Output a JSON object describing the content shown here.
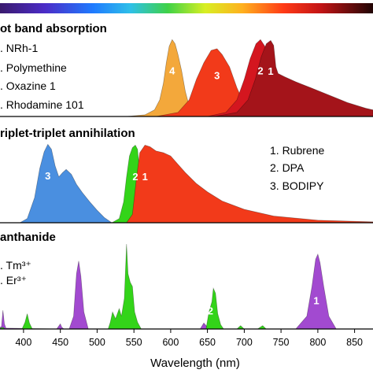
{
  "chart_data": {
    "type": "area",
    "xlabel": "Wavelength (nm)",
    "xlim": [
      368,
      875
    ],
    "x_ticks": [
      "400",
      "450",
      "500",
      "550",
      "600",
      "650",
      "700",
      "750",
      "800",
      "850"
    ],
    "colors": {
      "orange": "#f3a83b",
      "red": "#f23a1a",
      "crimson": "#d4161f",
      "darkred": "#a4141a",
      "blue": "#4a8fe0",
      "green": "#33d419",
      "magenta": "#a24ad0"
    },
    "panels": [
      {
        "title": "ot band absorption",
        "legend": [
          ". NRh-1",
          ". Polymethine",
          ". Oxazine 1",
          ". Rhodamine 101"
        ],
        "series": [
          {
            "peak_label": "4",
            "color_key": "orange",
            "values": [
              [
                540,
                0
              ],
              [
                565,
                0.02
              ],
              [
                578,
                0.08
              ],
              [
                585,
                0.2
              ],
              [
                590,
                0.4
              ],
              [
                594,
                0.65
              ],
              [
                598,
                0.85
              ],
              [
                602,
                0.93
              ],
              [
                606,
                0.88
              ],
              [
                610,
                0.75
              ],
              [
                615,
                0.55
              ],
              [
                620,
                0.3
              ],
              [
                626,
                0.1
              ],
              [
                632,
                0.02
              ],
              [
                640,
                0
              ]
            ]
          },
          {
            "peak_label": "3",
            "color_key": "red",
            "values": [
              [
                580,
                0
              ],
              [
                610,
                0.05
              ],
              [
                625,
                0.2
              ],
              [
                635,
                0.45
              ],
              [
                645,
                0.65
              ],
              [
                655,
                0.8
              ],
              [
                663,
                0.82
              ],
              [
                670,
                0.75
              ],
              [
                680,
                0.6
              ],
              [
                690,
                0.35
              ],
              [
                700,
                0.15
              ],
              [
                710,
                0.05
              ],
              [
                725,
                0
              ]
            ]
          },
          {
            "peak_label": "2",
            "color_key": "crimson",
            "values": [
              [
                650,
                0
              ],
              [
                675,
                0.05
              ],
              [
                690,
                0.2
              ],
              [
                700,
                0.45
              ],
              [
                708,
                0.7
              ],
              [
                716,
                0.88
              ],
              [
                722,
                0.93
              ],
              [
                728,
                0.85
              ],
              [
                733,
                0.6
              ],
              [
                738,
                0.3
              ],
              [
                745,
                0.12
              ],
              [
                755,
                0.04
              ],
              [
                770,
                0
              ]
            ]
          },
          {
            "peak_label": "1",
            "color_key": "darkred",
            "values": [
              [
                660,
                0
              ],
              [
                690,
                0.05
              ],
              [
                705,
                0.2
              ],
              [
                715,
                0.45
              ],
              [
                723,
                0.72
              ],
              [
                730,
                0.88
              ],
              [
                736,
                0.92
              ],
              [
                740,
                0.86
              ],
              [
                743,
                0.6
              ],
              [
                746,
                0.52
              ],
              [
                755,
                0.48
              ],
              [
                770,
                0.42
              ],
              [
                790,
                0.35
              ],
              [
                815,
                0.26
              ],
              [
                840,
                0.17
              ],
              [
                865,
                0.1
              ],
              [
                875,
                0.08
              ]
            ]
          }
        ]
      },
      {
        "title": "riplet-triplet annihilation",
        "legend": [
          "1. Rubrene",
          "2. DPA",
          "3. BODIPY"
        ],
        "series": [
          {
            "peak_label": "3",
            "color_key": "blue",
            "values": [
              [
                395,
                0
              ],
              [
                405,
                0.05
              ],
              [
                415,
                0.3
              ],
              [
                422,
                0.65
              ],
              [
                428,
                0.85
              ],
              [
                433,
                0.94
              ],
              [
                438,
                0.88
              ],
              [
                443,
                0.68
              ],
              [
                448,
                0.55
              ],
              [
                453,
                0.6
              ],
              [
                458,
                0.64
              ],
              [
                465,
                0.58
              ],
              [
                472,
                0.46
              ],
              [
                480,
                0.36
              ],
              [
                490,
                0.25
              ],
              [
                500,
                0.15
              ],
              [
                510,
                0.06
              ],
              [
                520,
                0
              ]
            ]
          },
          {
            "peak_label": "2",
            "color_key": "green",
            "values": [
              [
                520,
                0
              ],
              [
                530,
                0.05
              ],
              [
                536,
                0.25
              ],
              [
                540,
                0.55
              ],
              [
                544,
                0.8
              ],
              [
                548,
                0.9
              ],
              [
                552,
                0.93
              ],
              [
                555,
                0.88
              ],
              [
                558,
                0.6
              ],
              [
                562,
                0.3
              ],
              [
                568,
                0.1
              ],
              [
                575,
                0
              ]
            ]
          },
          {
            "peak_label": "1",
            "color_key": "red",
            "values": [
              [
                540,
                0
              ],
              [
                548,
                0.1
              ],
              [
                553,
                0.5
              ],
              [
                558,
                0.84
              ],
              [
                565,
                0.93
              ],
              [
                572,
                0.91
              ],
              [
                580,
                0.86
              ],
              [
                590,
                0.84
              ],
              [
                600,
                0.8
              ],
              [
                610,
                0.7
              ],
              [
                620,
                0.6
              ],
              [
                635,
                0.47
              ],
              [
                650,
                0.37
              ],
              [
                670,
                0.26
              ],
              [
                700,
                0.16
              ],
              [
                740,
                0.08
              ],
              [
                800,
                0.03
              ],
              [
                875,
                0.01
              ]
            ]
          }
        ]
      },
      {
        "title": "anthanide",
        "legend": [
          ". Tm³⁺",
          ". Er³⁺"
        ],
        "series": [
          {
            "peak_label": "",
            "color_key": "magenta",
            "values": [
              [
                365,
                0
              ],
              [
                370,
                0.03
              ],
              [
                372,
                0.22
              ],
              [
                374,
                0.06
              ],
              [
                376,
                0.01
              ],
              [
                445,
                0
              ],
              [
                450,
                0.06
              ],
              [
                452,
                0.02
              ],
              [
                455,
                0
              ],
              [
                462,
                0
              ],
              [
                468,
                0.15
              ],
              [
                472,
                0.65
              ],
              [
                475,
                0.8
              ],
              [
                478,
                0.62
              ],
              [
                482,
                0.2
              ],
              [
                488,
                0
              ],
              [
                640,
                0
              ],
              [
                645,
                0.07
              ],
              [
                650,
                0.02
              ],
              [
                655,
                0
              ],
              [
                770,
                0
              ],
              [
                785,
                0.15
              ],
              [
                792,
                0.5
              ],
              [
                797,
                0.82
              ],
              [
                800,
                0.88
              ],
              [
                803,
                0.78
              ],
              [
                808,
                0.5
              ],
              [
                815,
                0.15
              ],
              [
                825,
                0
              ]
            ]
          },
          {
            "peak_label": "",
            "color_key": "green",
            "values": [
              [
                365,
                0
              ],
              [
                372,
                0.02
              ],
              [
                375,
                0
              ],
              [
                398,
                0
              ],
              [
                402,
                0.08
              ],
              [
                405,
                0.18
              ],
              [
                408,
                0.07
              ],
              [
                412,
                0
              ],
              [
                515,
                0
              ],
              [
                518,
                0.08
              ],
              [
                521,
                0.2
              ],
              [
                525,
                0.12
              ],
              [
                530,
                0.24
              ],
              [
                533,
                0.15
              ],
              [
                537,
                0.36
              ],
              [
                540,
                1.0
              ],
              [
                542,
                0.65
              ],
              [
                545,
                0.55
              ],
              [
                548,
                0.5
              ],
              [
                551,
                0.2
              ],
              [
                555,
                0.08
              ],
              [
                560,
                0
              ],
              [
                648,
                0
              ],
              [
                652,
                0.2
              ],
              [
                656,
                0.32
              ],
              [
                658,
                0.48
              ],
              [
                661,
                0.42
              ],
              [
                664,
                0.18
              ],
              [
                668,
                0.05
              ],
              [
                672,
                0
              ],
              [
                690,
                0
              ],
              [
                695,
                0.04
              ],
              [
                700,
                0
              ],
              [
                718,
                0
              ],
              [
                725,
                0.04
              ],
              [
                730,
                0
              ]
            ]
          }
        ],
        "overlay_labels": [
          {
            "text": "2",
            "x": 654,
            "y": 0.17
          },
          {
            "text": "1",
            "x": 798,
            "y": 0.29
          }
        ]
      }
    ]
  }
}
